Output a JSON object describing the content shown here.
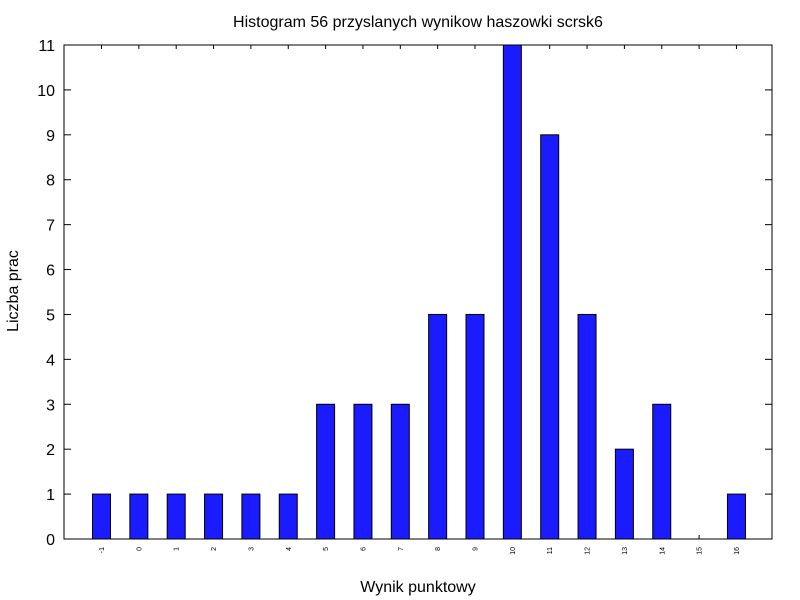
{
  "chart_data": {
    "type": "bar",
    "title": "Histogram 56 przyslanych wynikow haszowki scrsk6",
    "xlabel": "Wynik punktowy",
    "ylabel": "Liczba prac",
    "categories": [
      "-1",
      "0",
      "1",
      "2",
      "3",
      "4",
      "5",
      "6",
      "7",
      "8",
      "9",
      "10",
      "11",
      "12",
      "13",
      "14",
      "15",
      "16"
    ],
    "values": [
      1,
      1,
      1,
      1,
      1,
      1,
      3,
      3,
      3,
      5,
      5,
      11,
      9,
      5,
      2,
      3,
      0,
      1
    ],
    "yticks": [
      "0",
      "1",
      "2",
      "3",
      "4",
      "5",
      "6",
      "7",
      "8",
      "9",
      "10",
      "11"
    ],
    "ylim": [
      0,
      11
    ],
    "grid": false,
    "legend": "none",
    "bar_color": "#1b1bff",
    "bar_edge_color": "#000000"
  }
}
